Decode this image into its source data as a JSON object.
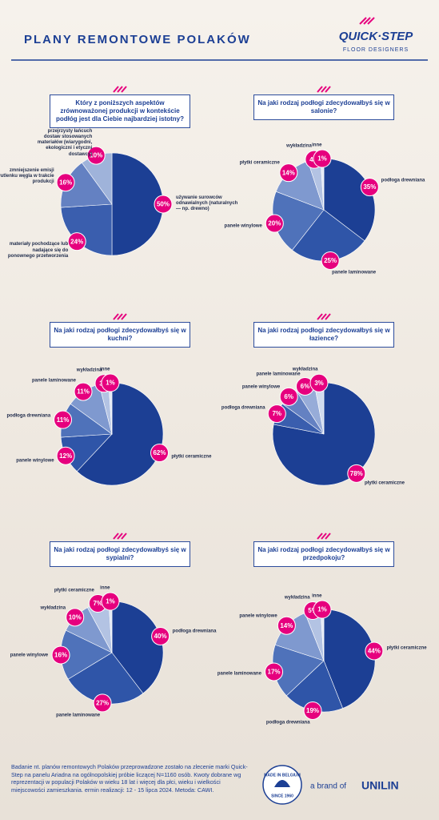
{
  "header": {
    "title": "PLANY REMONTOWE POLAKÓW",
    "logo": "QUICK·STEP",
    "logo_sub": "FLOOR DESIGNERS"
  },
  "chart_data": [
    {
      "type": "pie",
      "title": "Który z poniższych aspektów zrównoważonej produkcji w kontekście podłóg jest dla Ciebie najbardziej istotny?",
      "categories": [
        "używanie surowców odnawialnych (naturalnych — np. drewno)",
        "materiały pochodzące lub nadające się do ponownego przetworzenia",
        "zmniejszenie emisji dwutlenku węgla w trakcie produkcji",
        "przejrzysty łańcuch dostaw stosowanych materiałów (wiarygodni, ekologiczni i etyczni dostawcy)"
      ],
      "values": [
        50,
        24,
        16,
        10
      ],
      "value_labels": [
        "50%",
        "24%",
        "16%",
        "10%"
      ],
      "colors": [
        "#1c3f94",
        "#3a5eae",
        "#6481c2",
        "#9fb3da"
      ]
    },
    {
      "type": "pie",
      "title": "Na jaki rodzaj podłogi zdecydowałbyś się w salonie?",
      "categories": [
        "podłoga drewniana",
        "panele laminowane",
        "panele winylowe",
        "płytki ceramiczne",
        "wykładzina",
        "inne"
      ],
      "values": [
        35,
        25,
        20,
        14,
        4,
        1
      ],
      "value_labels": [
        "35%",
        "25%",
        "20%",
        "14%",
        "4%",
        "1%"
      ],
      "colors": [
        "#1c3f94",
        "#2f55a8",
        "#4f72ba",
        "#7f99cf",
        "#b3c3e3",
        "#e3e9f5"
      ]
    },
    {
      "type": "pie",
      "title": "Na jaki rodzaj podłogi zdecydowałbyś się w kuchni?",
      "categories": [
        "płytki ceramiczne",
        "panele winylowe",
        "podłoga drewniana",
        "panele laminowane",
        "wykładzina",
        "inne"
      ],
      "values": [
        62,
        12,
        11,
        11,
        3,
        1
      ],
      "value_labels": [
        "62%",
        "12%",
        "11%",
        "11%",
        "3%",
        "1%"
      ],
      "colors": [
        "#1c3f94",
        "#2f55a8",
        "#4f72ba",
        "#7f99cf",
        "#b3c3e3",
        "#e3e9f5"
      ]
    },
    {
      "type": "pie",
      "title": "Na jaki rodzaj podłogi zdecydowałbyś się w łazience?",
      "categories": [
        "płytki ceramiczne",
        "podłoga drewniana",
        "panele winylowe",
        "panele laminowane",
        "wykładzina"
      ],
      "values": [
        78,
        7,
        6,
        6,
        3
      ],
      "value_labels": [
        "78%",
        "7%",
        "6%",
        "6%",
        "3%"
      ],
      "colors": [
        "#1c3f94",
        "#3a5eae",
        "#6481c2",
        "#97acd8",
        "#d0dbee"
      ]
    },
    {
      "type": "pie",
      "title": "Na jaki rodzaj podłogi zdecydowałbyś się w sypialni?",
      "categories": [
        "podłoga drewniana",
        "panele laminowane",
        "panele winylowe",
        "wykładzina",
        "płytki ceramiczne",
        "inne"
      ],
      "values": [
        40,
        27,
        16,
        10,
        7,
        1
      ],
      "value_labels": [
        "40%",
        "27%",
        "16%",
        "10%",
        "7%",
        "1%"
      ],
      "colors": [
        "#1c3f94",
        "#2f55a8",
        "#4f72ba",
        "#7f99cf",
        "#b3c3e3",
        "#e3e9f5"
      ]
    },
    {
      "type": "pie",
      "title": "Na jaki rodzaj podłogi zdecydowałbyś się w przedpokoju?",
      "categories": [
        "płytki ceramiczne",
        "podłoga drewniana",
        "panele laminowane",
        "panele winylowe",
        "wykładzina",
        "inne"
      ],
      "values": [
        44,
        19,
        17,
        14,
        5,
        1
      ],
      "value_labels": [
        "44%",
        "19%",
        "17%",
        "14%",
        "5%",
        "1%"
      ],
      "colors": [
        "#1c3f94",
        "#2f55a8",
        "#4f72ba",
        "#7f99cf",
        "#b3c3e3",
        "#e3e9f5"
      ]
    }
  ],
  "footer": {
    "note": "Badanie nt. planów remontowych Polaków przeprowadzone zostało na zlecenie marki Quick-Step na panelu Ariadna na ogólnopolskiej próbie liczącej N=1160 osób. Kwoty dobrane wg reprezentacji w populacji Polaków w wieku 18 lat i więcej dla płci, wieku i wielkości miejscowości zamieszkania. ermin realizacji: 12 - 15 lipca 2024. Metoda: CAWI.",
    "badge_top": "MADE IN BELGIUM",
    "badge_bottom": "SINCE 1960",
    "brand_of": "a brand of",
    "brand": "UNILIN"
  }
}
